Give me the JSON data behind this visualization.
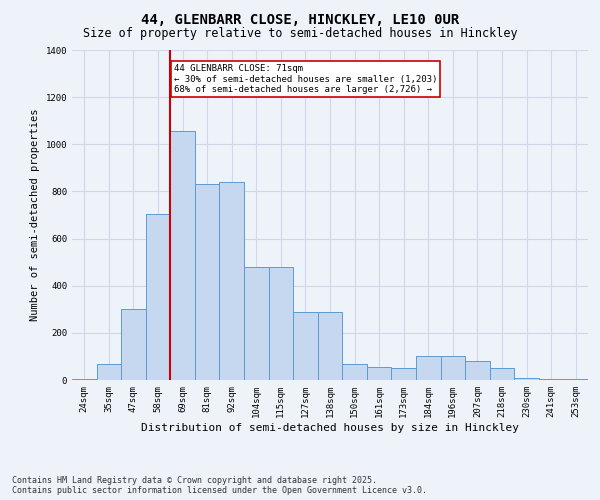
{
  "title_line1": "44, GLENBARR CLOSE, HINCKLEY, LE10 0UR",
  "title_line2": "Size of property relative to semi-detached houses in Hinckley",
  "xlabel": "Distribution of semi-detached houses by size in Hinckley",
  "ylabel": "Number of semi-detached properties",
  "categories": [
    "24sqm",
    "35sqm",
    "47sqm",
    "58sqm",
    "69sqm",
    "81sqm",
    "92sqm",
    "104sqm",
    "115sqm",
    "127sqm",
    "138sqm",
    "150sqm",
    "161sqm",
    "173sqm",
    "184sqm",
    "196sqm",
    "207sqm",
    "218sqm",
    "230sqm",
    "241sqm",
    "253sqm"
  ],
  "values": [
    5,
    70,
    300,
    705,
    1055,
    830,
    840,
    480,
    480,
    290,
    290,
    70,
    55,
    50,
    100,
    100,
    80,
    50,
    10,
    5,
    3
  ],
  "bar_color": "#c5d8f0",
  "bar_edge_color": "#5b9bd5",
  "grid_color": "#d0d8e8",
  "background_color": "#eef3fa",
  "red_line_bin_index": 4,
  "property_label": "44 GLENBARR CLOSE: 71sqm",
  "annotation_line2": "← 30% of semi-detached houses are smaller (1,203)",
  "annotation_line3": "68% of semi-detached houses are larger (2,726) →",
  "annotation_box_color": "#ffffff",
  "annotation_border_color": "#cc0000",
  "red_line_color": "#cc0000",
  "ylim": [
    0,
    1400
  ],
  "yticks": [
    0,
    200,
    400,
    600,
    800,
    1000,
    1200,
    1400
  ],
  "footnote_line1": "Contains HM Land Registry data © Crown copyright and database right 2025.",
  "footnote_line2": "Contains public sector information licensed under the Open Government Licence v3.0.",
  "title_fontsize": 10,
  "subtitle_fontsize": 8.5,
  "tick_fontsize": 6.5,
  "ylabel_fontsize": 7.5,
  "xlabel_fontsize": 8,
  "footnote_fontsize": 6,
  "annotation_fontsize": 6.5
}
